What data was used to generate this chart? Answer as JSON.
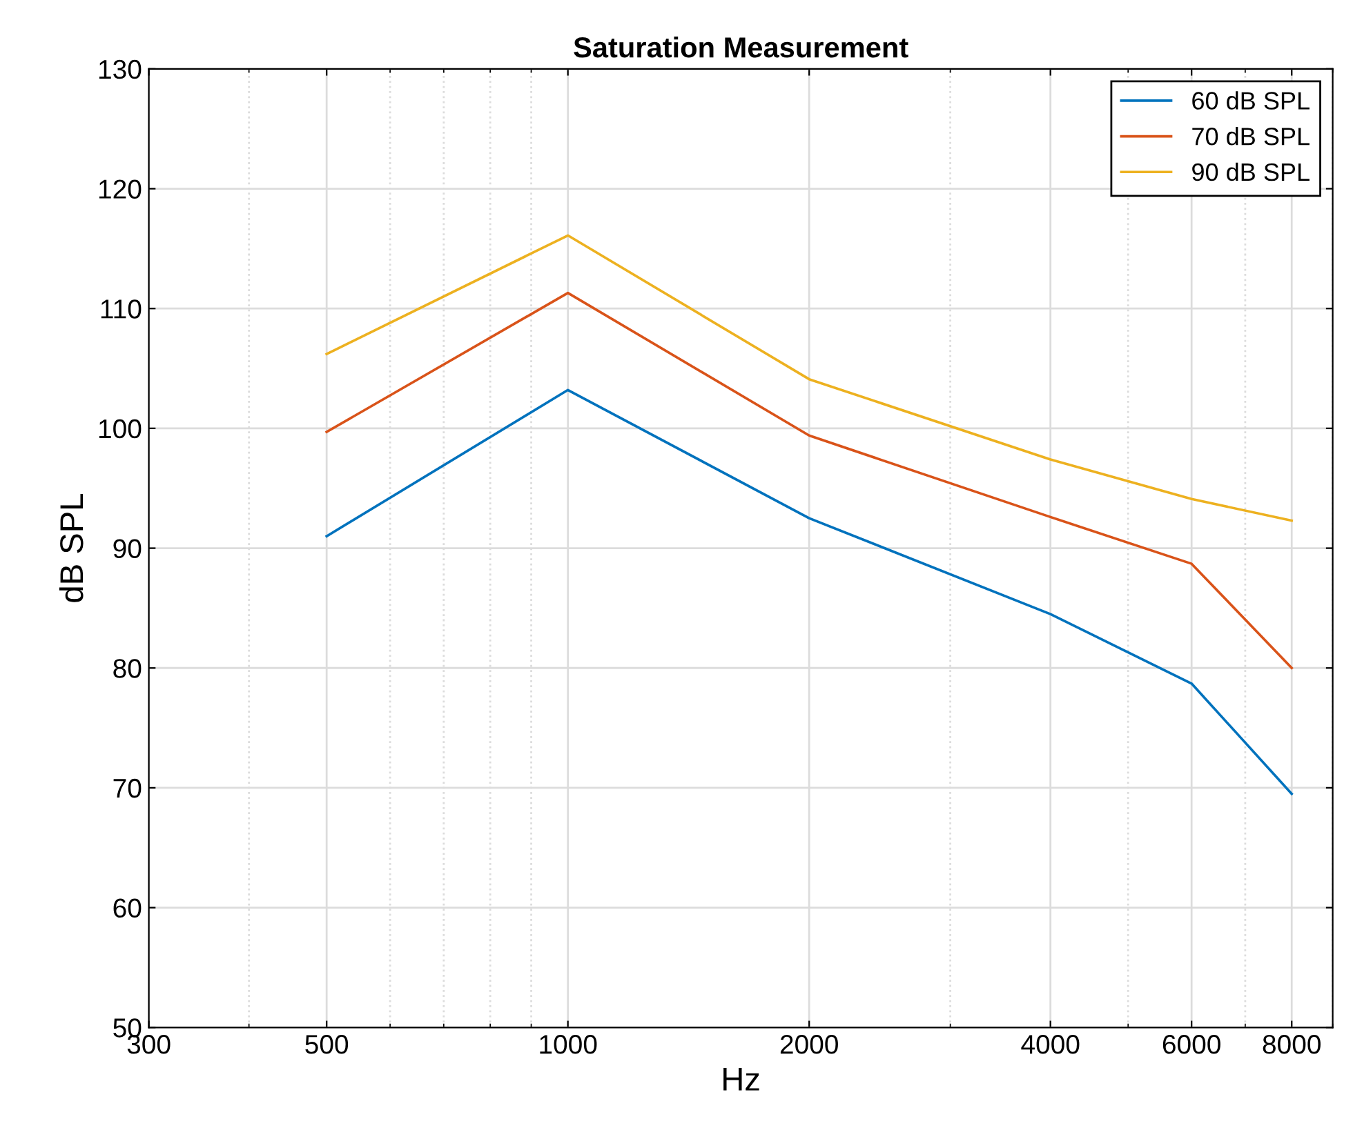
{
  "chart_data": {
    "type": "line",
    "title": "Saturation Measurement",
    "xlabel": "Hz",
    "ylabel": "dB SPL",
    "x": [
      500,
      1000,
      2000,
      4000,
      6000,
      8000
    ],
    "series": [
      {
        "name": "60 dB SPL",
        "color": "#0072bd",
        "values": [
          91.0,
          103.2,
          92.5,
          84.5,
          78.7,
          69.5
        ]
      },
      {
        "name": "70 dB SPL",
        "color": "#d95319",
        "values": [
          99.7,
          111.3,
          99.4,
          92.6,
          88.7,
          80.0
        ]
      },
      {
        "name": "90 dB SPL",
        "color": "#edb120",
        "values": [
          106.2,
          116.1,
          104.1,
          97.4,
          94.1,
          92.3
        ]
      }
    ],
    "log": "x",
    "xlim": [
      300,
      9000
    ],
    "xticks": [
      300,
      500,
      1000,
      2000,
      4000,
      6000,
      8000
    ],
    "ylim": [
      50,
      130
    ],
    "yticks": [
      50,
      60,
      70,
      80,
      90,
      100,
      110,
      120,
      130
    ],
    "grid": true,
    "legend": "top right",
    "marker": "none",
    "line_style": "solid"
  }
}
